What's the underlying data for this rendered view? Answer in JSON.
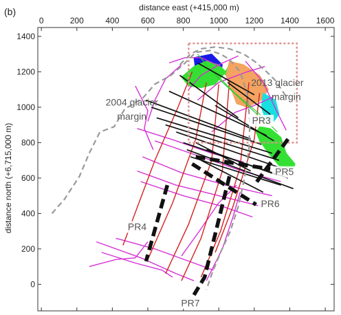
{
  "chart_data": {
    "type": "line",
    "panel_label": "(b)",
    "xlabel": "distance east (+415,000 m)",
    "ylabel": "distance north (+6,715,000 m)",
    "xlim": [
      -20,
      1650
    ],
    "ylim": [
      -150,
      1450
    ],
    "xticks": [
      0,
      200,
      400,
      600,
      800,
      1000,
      1200,
      1400,
      1600
    ],
    "yticks": [
      0,
      200,
      400,
      600,
      800,
      1000,
      1200,
      1400
    ],
    "grid": false,
    "glacier_margin_2004": {
      "label": "2004 glacier margin",
      "color": "#999999",
      "points": [
        [
          60,
          400
        ],
        [
          130,
          480
        ],
        [
          215,
          610
        ],
        [
          270,
          740
        ],
        [
          330,
          860
        ],
        [
          410,
          890
        ],
        [
          470,
          990
        ],
        [
          570,
          1050
        ],
        [
          640,
          1130
        ],
        [
          730,
          1180
        ],
        [
          800,
          1240
        ],
        [
          870,
          1310
        ],
        [
          950,
          1320
        ],
        [
          1010,
          1300
        ],
        [
          1060,
          1270
        ],
        [
          1120,
          1200
        ],
        [
          1160,
          1080
        ],
        [
          1175,
          920
        ],
        [
          1170,
          760
        ],
        [
          1145,
          600
        ],
        [
          1110,
          440
        ],
        [
          1065,
          300
        ],
        [
          1010,
          180
        ],
        [
          965,
          70
        ],
        [
          930,
          -30
        ]
      ]
    },
    "glacier_margin_2013": {
      "label": "2013 glacier margin",
      "color": "#999999",
      "points": [
        [
          780,
          1240
        ],
        [
          840,
          1300
        ],
        [
          900,
          1330
        ],
        [
          980,
          1340
        ],
        [
          1060,
          1330
        ],
        [
          1140,
          1300
        ],
        [
          1200,
          1260
        ],
        [
          1270,
          1200
        ],
        [
          1320,
          1150
        ],
        [
          1380,
          1060
        ]
      ]
    },
    "survey_box": {
      "color": "#e09090",
      "x": [
        830,
        1440
      ],
      "y": [
        800,
        1360
      ]
    },
    "profiles": [
      {
        "name": "PR3",
        "label_at": [
          1240,
          910
        ],
        "points": [
          [
            1390,
            820
          ],
          [
            1200,
            560
          ]
        ]
      },
      {
        "name": "PR4",
        "label_at": [
          540,
          310
        ],
        "points": [
          [
            710,
            560
          ],
          [
            590,
            130
          ]
        ]
      },
      {
        "name": "PR5",
        "label_at": [
          1370,
          620
        ],
        "points": [
          [
            870,
            720
          ],
          [
            1290,
            650
          ]
        ]
      },
      {
        "name": "PR6",
        "label_at": [
          1290,
          440
        ],
        "points": [
          [
            850,
            680
          ],
          [
            1210,
            450
          ]
        ]
      },
      {
        "name": "PR7",
        "label_at": [
          840,
          -120
        ],
        "points": [
          [
            1060,
            610
          ],
          [
            920,
            40
          ],
          [
            860,
            -60
          ]
        ]
      }
    ],
    "survey_lines": {
      "black": [
        [
          [
            590,
            1040
          ],
          [
            1180,
            820
          ]
        ],
        [
          [
            620,
            1000
          ],
          [
            1240,
            790
          ]
        ],
        [
          [
            650,
            940
          ],
          [
            1300,
            740
          ]
        ],
        [
          [
            700,
            900
          ],
          [
            1340,
            700
          ]
        ],
        [
          [
            760,
            860
          ],
          [
            1370,
            650
          ]
        ],
        [
          [
            800,
            800
          ],
          [
            1390,
            600
          ]
        ],
        [
          [
            820,
            760
          ],
          [
            1420,
            540
          ]
        ],
        [
          [
            840,
            720
          ],
          [
            1350,
            560
          ]
        ],
        [
          [
            780,
            1180
          ],
          [
            1110,
            940
          ]
        ],
        [
          [
            720,
            1090
          ],
          [
            1270,
            840
          ]
        ],
        [
          [
            880,
            1250
          ],
          [
            1200,
            1070
          ]
        ],
        [
          [
            870,
            800
          ],
          [
            1180,
            640
          ]
        ],
        [
          [
            930,
            760
          ],
          [
            1320,
            620
          ]
        ],
        [
          [
            900,
            700
          ],
          [
            1250,
            520
          ]
        ],
        [
          [
            980,
            1010
          ],
          [
            1310,
            810
          ]
        ],
        [
          [
            1050,
            1140
          ],
          [
            1290,
            960
          ]
        ]
      ],
      "red": [
        [
          [
            460,
            220
          ],
          [
            640,
            700
          ],
          [
            770,
            1000
          ],
          [
            850,
            1200
          ]
        ],
        [
          [
            600,
            140
          ],
          [
            740,
            460
          ],
          [
            870,
            820
          ],
          [
            930,
            1140
          ]
        ],
        [
          [
            700,
            60
          ],
          [
            830,
            340
          ],
          [
            960,
            700
          ],
          [
            1000,
            1130
          ]
        ],
        [
          [
            790,
            20
          ],
          [
            900,
            260
          ],
          [
            1020,
            640
          ],
          [
            1060,
            1150
          ]
        ],
        [
          [
            900,
            40
          ],
          [
            1010,
            300
          ],
          [
            1120,
            660
          ],
          [
            1170,
            1140
          ]
        ],
        [
          [
            980,
            180
          ],
          [
            1080,
            440
          ],
          [
            1200,
            820
          ],
          [
            1230,
            1080
          ]
        ]
      ],
      "magenta": [
        [
          [
            270,
            100
          ],
          [
            420,
            140
          ],
          [
            530,
            150
          ],
          [
            600,
            240
          ]
        ],
        [
          [
            340,
            180
          ],
          [
            530,
            120
          ],
          [
            680,
            80
          ],
          [
            740,
            40
          ]
        ],
        [
          [
            310,
            240
          ],
          [
            560,
            150
          ],
          [
            760,
            60
          ],
          [
            860,
            20
          ]
        ],
        [
          [
            420,
            260
          ],
          [
            640,
            200
          ],
          [
            860,
            120
          ],
          [
            970,
            80
          ]
        ],
        [
          [
            560,
            580
          ],
          [
            800,
            500
          ],
          [
            1020,
            440
          ],
          [
            1190,
            380
          ]
        ],
        [
          [
            540,
            640
          ],
          [
            760,
            560
          ],
          [
            1000,
            500
          ],
          [
            1240,
            440
          ]
        ],
        [
          [
            570,
            720
          ],
          [
            790,
            630
          ],
          [
            1040,
            560
          ],
          [
            1300,
            500
          ]
        ],
        [
          [
            640,
            810
          ],
          [
            900,
            720
          ],
          [
            1130,
            640
          ],
          [
            1350,
            580
          ]
        ],
        [
          [
            530,
            1120
          ],
          [
            600,
            980
          ],
          [
            580,
            880
          ],
          [
            630,
            760
          ]
        ],
        [
          [
            540,
            880
          ],
          [
            760,
            810
          ],
          [
            960,
            740
          ],
          [
            1140,
            690
          ]
        ],
        [
          [
            720,
            1250
          ],
          [
            810,
            1280
          ],
          [
            900,
            1280
          ],
          [
            1010,
            1230
          ]
        ],
        [
          [
            600,
            920
          ],
          [
            640,
            1040
          ],
          [
            700,
            1160
          ],
          [
            790,
            1240
          ]
        ],
        [
          [
            830,
            1100
          ],
          [
            900,
            1180
          ],
          [
            1000,
            1240
          ],
          [
            1110,
            1290
          ]
        ],
        [
          [
            880,
            1040
          ],
          [
            1000,
            1140
          ],
          [
            1160,
            1200
          ],
          [
            1260,
            1230
          ]
        ],
        [
          [
            960,
            860
          ],
          [
            1090,
            970
          ],
          [
            1200,
            1010
          ],
          [
            1310,
            1060
          ]
        ],
        [
          [
            1150,
            1260
          ],
          [
            1250,
            1140
          ],
          [
            1330,
            970
          ],
          [
            1380,
            870
          ]
        ],
        [
          [
            790,
            160
          ],
          [
            890,
            300
          ],
          [
            1000,
            460
          ],
          [
            1100,
            560
          ]
        ],
        [
          [
            930,
            20
          ],
          [
            1020,
            200
          ],
          [
            1080,
            380
          ],
          [
            1120,
            520
          ]
        ]
      ],
      "green": [
        [
          [
            880,
            1300
          ],
          [
            1000,
            1160
          ],
          [
            1130,
            1040
          ],
          [
            1280,
            900
          ]
        ],
        [
          [
            980,
            1190
          ],
          [
            1090,
            1080
          ],
          [
            1220,
            970
          ],
          [
            1330,
            860
          ]
        ]
      ]
    },
    "survey_patches": [
      {
        "color": "#1a1ae6",
        "points": [
          [
            860,
            1280
          ],
          [
            960,
            1300
          ],
          [
            1020,
            1240
          ],
          [
            1010,
            1180
          ],
          [
            930,
            1160
          ],
          [
            870,
            1200
          ]
        ]
      },
      {
        "color": "#34e034",
        "points": [
          [
            790,
            1170
          ],
          [
            860,
            1230
          ],
          [
            930,
            1260
          ],
          [
            1000,
            1240
          ],
          [
            1040,
            1200
          ],
          [
            980,
            1130
          ],
          [
            900,
            1110
          ],
          [
            830,
            1120
          ]
        ]
      },
      {
        "color": "#34e034",
        "points": [
          [
            1030,
            1190
          ],
          [
            1060,
            1240
          ],
          [
            1110,
            1230
          ],
          [
            1100,
            1180
          ],
          [
            1060,
            1160
          ]
        ]
      },
      {
        "color": "#f4a460",
        "points": [
          [
            1060,
            1260
          ],
          [
            1140,
            1240
          ],
          [
            1230,
            1180
          ],
          [
            1280,
            1100
          ],
          [
            1240,
            1040
          ],
          [
            1160,
            1000
          ],
          [
            1100,
            1020
          ],
          [
            1070,
            1100
          ],
          [
            1040,
            1180
          ]
        ]
      },
      {
        "color": "#19e0e0",
        "points": [
          [
            1250,
            1080
          ],
          [
            1320,
            1040
          ],
          [
            1340,
            960
          ],
          [
            1310,
            920
          ],
          [
            1260,
            940
          ],
          [
            1240,
            1000
          ]
        ]
      },
      {
        "color": "#34e034",
        "points": [
          [
            1230,
            890
          ],
          [
            1290,
            880
          ],
          [
            1350,
            830
          ],
          [
            1380,
            740
          ],
          [
            1430,
            680
          ],
          [
            1420,
            650
          ],
          [
            1340,
            670
          ],
          [
            1280,
            740
          ],
          [
            1230,
            810
          ],
          [
            1210,
            860
          ]
        ]
      }
    ],
    "annotations": [
      {
        "text": "2004 glacier",
        "at": [
          510,
          1010
        ],
        "anchor": "middle"
      },
      {
        "text": "margin",
        "at": [
          510,
          930
        ],
        "anchor": "middle"
      },
      {
        "text": "2013 glacier",
        "at": [
          1330,
          1120
        ],
        "anchor": "middle"
      },
      {
        "text": "margin",
        "at": [
          1380,
          1040
        ],
        "anchor": "middle"
      }
    ]
  }
}
